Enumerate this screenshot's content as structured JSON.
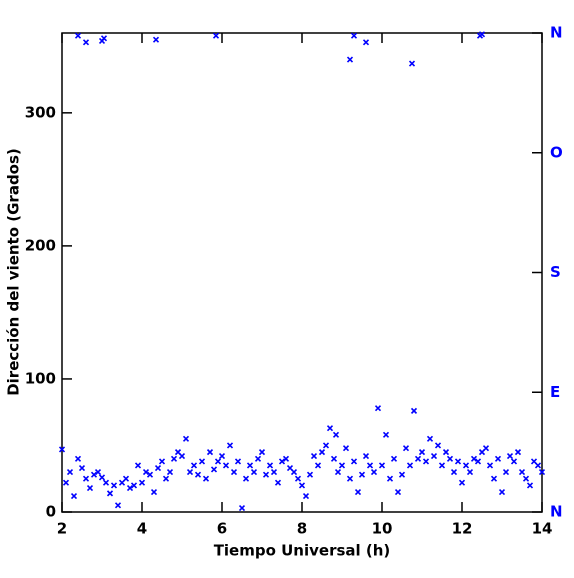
{
  "chart_data": {
    "type": "scatter",
    "xlabel": "Tiempo Universal (h)",
    "ylabel": "Dirección del viento (Grados)",
    "xlim": [
      2,
      14
    ],
    "ylim": [
      0,
      360
    ],
    "xticks": [
      2,
      4,
      6,
      8,
      10,
      12,
      14
    ],
    "yticks": [
      0,
      100,
      200,
      300
    ],
    "y2lim": [
      0,
      360
    ],
    "y2ticks": [
      {
        "value": 0,
        "label": "N"
      },
      {
        "value": 90,
        "label": "E"
      },
      {
        "value": 180,
        "label": "S"
      },
      {
        "value": 270,
        "label": "O"
      },
      {
        "value": 360,
        "label": "N"
      }
    ],
    "y2color": "#0000ff",
    "series": [
      {
        "color": "#0000ff",
        "x": [
          2.0,
          2.1,
          2.2,
          2.3,
          2.4,
          2.5,
          2.6,
          2.7,
          2.8,
          2.9,
          3.0,
          3.1,
          3.2,
          3.3,
          3.4,
          3.5,
          3.6,
          3.7,
          3.8,
          3.9,
          4.0,
          4.1,
          4.2,
          4.3,
          4.4,
          4.5,
          4.6,
          4.7,
          4.8,
          4.9,
          5.0,
          5.1,
          5.2,
          5.3,
          5.4,
          5.5,
          5.6,
          5.7,
          5.8,
          5.9,
          6.0,
          6.1,
          6.2,
          6.3,
          6.4,
          6.5,
          6.6,
          6.7,
          6.8,
          6.9,
          7.0,
          7.1,
          7.2,
          7.3,
          7.4,
          7.5,
          7.6,
          7.7,
          7.8,
          7.9,
          8.0,
          8.1,
          8.2,
          8.3,
          8.4,
          8.5,
          8.6,
          8.7,
          8.8,
          8.9,
          9.0,
          9.1,
          9.2,
          9.3,
          9.4,
          9.5,
          9.6,
          9.7,
          9.8,
          9.9,
          10.0,
          10.1,
          10.2,
          10.3,
          10.4,
          10.5,
          10.6,
          10.7,
          10.8,
          10.9,
          11.0,
          11.1,
          11.2,
          11.3,
          11.4,
          11.5,
          11.6,
          11.7,
          11.8,
          11.9,
          12.0,
          12.1,
          12.2,
          12.3,
          12.4,
          12.5,
          12.6,
          12.7,
          12.8,
          12.9,
          13.0,
          13.1,
          13.2,
          13.3,
          13.4,
          13.5,
          13.6,
          13.7,
          13.8,
          13.9,
          14.0,
          2.4,
          2.6,
          3.0,
          3.05,
          4.35,
          5.85,
          9.2,
          9.3,
          9.6,
          10.75,
          12.45,
          12.5,
          8.85
        ],
        "values": [
          47,
          22,
          30,
          12,
          40,
          33,
          25,
          18,
          28,
          30,
          26,
          22,
          14,
          20,
          5,
          22,
          25,
          18,
          20,
          35,
          22,
          30,
          28,
          15,
          33,
          38,
          25,
          30,
          40,
          45,
          42,
          55,
          30,
          35,
          28,
          38,
          25,
          45,
          32,
          38,
          42,
          35,
          50,
          30,
          38,
          3,
          25,
          35,
          30,
          40,
          45,
          28,
          35,
          30,
          22,
          38,
          40,
          33,
          30,
          25,
          20,
          12,
          28,
          42,
          35,
          45,
          50,
          63,
          40,
          30,
          35,
          48,
          25,
          38,
          15,
          28,
          42,
          35,
          30,
          78,
          35,
          58,
          25,
          40,
          15,
          28,
          48,
          35,
          76,
          40,
          45,
          38,
          55,
          42,
          50,
          35,
          45,
          40,
          30,
          38,
          22,
          35,
          30,
          40,
          38,
          45,
          48,
          35,
          25,
          40,
          15,
          30,
          42,
          38,
          45,
          30,
          25,
          20,
          38,
          35,
          30,
          358,
          353,
          354,
          356,
          355,
          358,
          340,
          358,
          353,
          337,
          358,
          359,
          58
        ]
      }
    ]
  }
}
